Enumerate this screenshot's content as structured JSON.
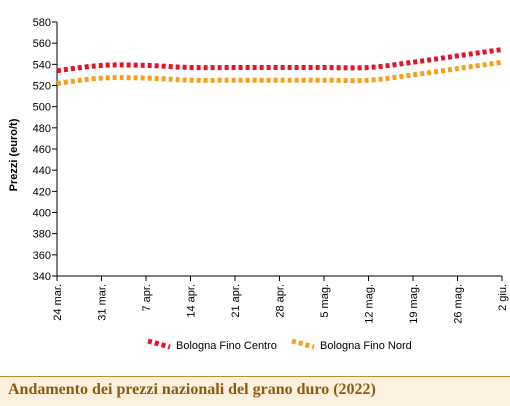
{
  "caption": "Andamento dei prezzi nazionali del grano duro (2022)",
  "chart_data": {
    "type": "line",
    "title": "",
    "xlabel": "",
    "ylabel": "Prezzi (euro/t)",
    "ylim": [
      340,
      580
    ],
    "yticks": [
      340,
      360,
      380,
      400,
      420,
      440,
      460,
      480,
      500,
      520,
      540,
      560,
      580
    ],
    "categories": [
      "24 mar.",
      "31 mar.",
      "7 apr.",
      "14 apr.",
      "21 apr.",
      "28 apr.",
      "5 mag.",
      "12 mag.",
      "19 mag.",
      "26 mag.",
      "2 giu."
    ],
    "grid": false,
    "legend_position": "bottom",
    "series": [
      {
        "name": "Bologna Fino Centro",
        "color": "#e0142d",
        "values": [
          534,
          539,
          539,
          537,
          537,
          537,
          537,
          537,
          542,
          548,
          554
        ]
      },
      {
        "name": "Bologna Fino Nord",
        "color": "#f4a21c",
        "values": [
          522,
          527,
          527,
          525,
          525,
          525,
          525,
          525,
          530,
          536,
          542
        ]
      }
    ]
  }
}
